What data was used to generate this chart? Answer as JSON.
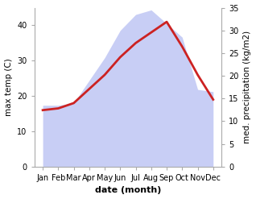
{
  "months": [
    "Jan",
    "Feb",
    "Mar",
    "Apr",
    "May",
    "Jun",
    "Jul",
    "Aug",
    "Sep",
    "Oct",
    "Nov",
    "Dec"
  ],
  "max_temp": [
    16.0,
    16.5,
    18.0,
    22.0,
    26.0,
    31.0,
    35.0,
    38.0,
    41.0,
    34.0,
    26.0,
    19.0
  ],
  "precipitation": [
    13.5,
    13.5,
    14.0,
    19.0,
    24.0,
    30.0,
    33.5,
    34.5,
    31.5,
    28.5,
    17.0,
    16.5
  ],
  "temp_color": "#cc2222",
  "precip_fill_color": "#c8cef5",
  "precip_edge_color": "#c8cef5",
  "temp_ylim": [
    0,
    45
  ],
  "precip_ylim": [
    0,
    35
  ],
  "temp_yticks": [
    0,
    10,
    20,
    30,
    40
  ],
  "precip_yticks": [
    0,
    5,
    10,
    15,
    20,
    25,
    30,
    35
  ],
  "xlabel": "date (month)",
  "ylabel_left": "max temp (C)",
  "ylabel_right": "med. precipitation (kg/m2)",
  "bg_color": "#ffffff",
  "spine_color": "#aaaaaa",
  "temp_linewidth": 2.0,
  "tick_labelsize": 7,
  "label_fontsize": 7.5,
  "xlabel_fontsize": 8
}
